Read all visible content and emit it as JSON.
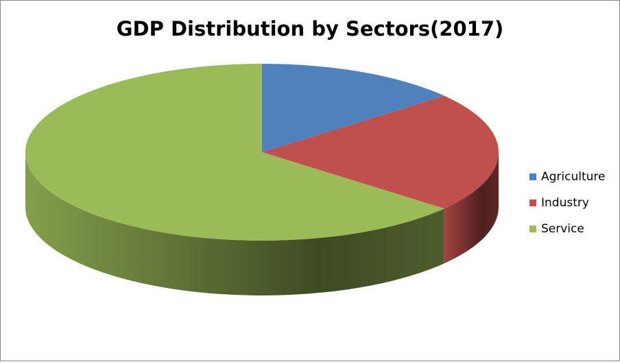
{
  "chart_data": {
    "type": "pie3d",
    "title": "GDP Distribution by Sectors(2017)",
    "categories": [
      "Agriculture",
      "Industry",
      "Service"
    ],
    "values": [
      14,
      22,
      64
    ],
    "colors": [
      "#4f81bd",
      "#c0504d",
      "#9bbb59"
    ],
    "legend": "right"
  }
}
